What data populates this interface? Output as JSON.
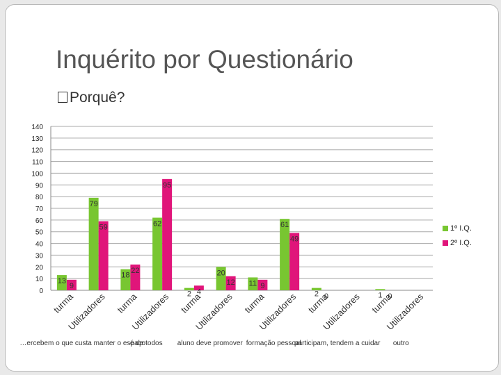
{
  "slide": {
    "title": "Inquérito por Questionário",
    "bullet": "Porquê?"
  },
  "chart_data": {
    "type": "bar",
    "ylim": [
      0,
      140
    ],
    "yticks": [
      0,
      10,
      20,
      30,
      40,
      50,
      60,
      70,
      80,
      90,
      100,
      110,
      120,
      130,
      140
    ],
    "grid": true,
    "legend_position": "right",
    "groups": [
      {
        "label": "…ercebem o que custa manter o espaço",
        "categories": [
          "turma",
          "Utilizadores"
        ]
      },
      {
        "label": "é de todos",
        "categories": [
          "turma",
          "Utilizadores"
        ]
      },
      {
        "label": "aluno deve promover",
        "categories": [
          "turma",
          "Utilizadores"
        ]
      },
      {
        "label": "formação pessoal",
        "categories": [
          "turma",
          "Utilizadores"
        ]
      },
      {
        "label": "participam, tendem a cuidar",
        "categories": [
          "turma",
          "Utilizadores"
        ]
      },
      {
        "label": "outro",
        "categories": [
          "turma",
          "Utilizadores"
        ]
      }
    ],
    "series": [
      {
        "name": "1º I.Q.",
        "color": "#78c631",
        "values": [
          13,
          79,
          18,
          62,
          2,
          20,
          11,
          61,
          2,
          null,
          1,
          null
        ]
      },
      {
        "name": "2º I.Q.",
        "color": "#e0157a",
        "values": [
          9,
          59,
          22,
          95,
          4,
          12,
          9,
          49,
          0,
          null,
          0,
          null
        ]
      }
    ]
  }
}
